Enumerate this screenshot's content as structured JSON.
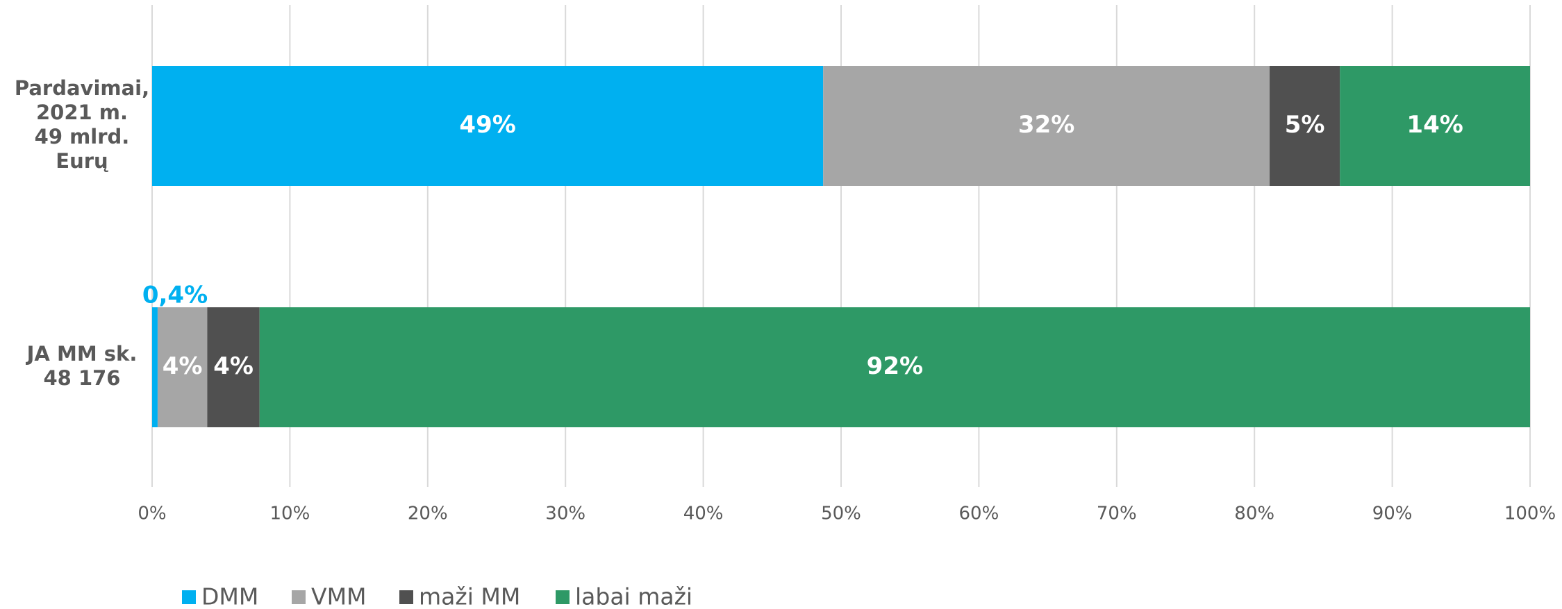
{
  "chart_data": {
    "type": "stacked_bar_horizontal",
    "categories": [
      [
        "Pardavimai,",
        "2021 m.",
        "49 mlrd.",
        "Eurų"
      ],
      [
        "JA MM sk.",
        "48 176"
      ]
    ],
    "series": [
      {
        "name": "DMM",
        "color": "#00b0f0",
        "values": [
          48.7,
          0.4
        ],
        "value_labels": [
          "49%",
          "0,4%"
        ]
      },
      {
        "name": "VMM",
        "color": "#a6a6a6",
        "values": [
          32.4,
          3.6
        ],
        "value_labels": [
          "32%",
          "4%"
        ]
      },
      {
        "name": "maži MM",
        "color": "#505050",
        "values": [
          5.1,
          3.8
        ],
        "value_labels": [
          "5%",
          "4%"
        ]
      },
      {
        "name": "labai maži",
        "color": "#2e9966",
        "values": [
          13.8,
          92.2
        ],
        "value_labels": [
          "14%",
          "92%"
        ]
      }
    ],
    "xlim": [
      0,
      100
    ],
    "xticks": [
      {
        "value": 0,
        "label": "0%"
      },
      {
        "value": 10,
        "label": "10%"
      },
      {
        "value": 20,
        "label": "20%"
      },
      {
        "value": 30,
        "label": "30%"
      },
      {
        "value": 40,
        "label": "40%"
      },
      {
        "value": 50,
        "label": "50%"
      },
      {
        "value": 60,
        "label": "60%"
      },
      {
        "value": 70,
        "label": "70%"
      },
      {
        "value": 80,
        "label": "80%"
      },
      {
        "value": 90,
        "label": "90%"
      },
      {
        "value": 100,
        "label": "100%"
      }
    ],
    "grid": true,
    "legend": "bottom"
  }
}
